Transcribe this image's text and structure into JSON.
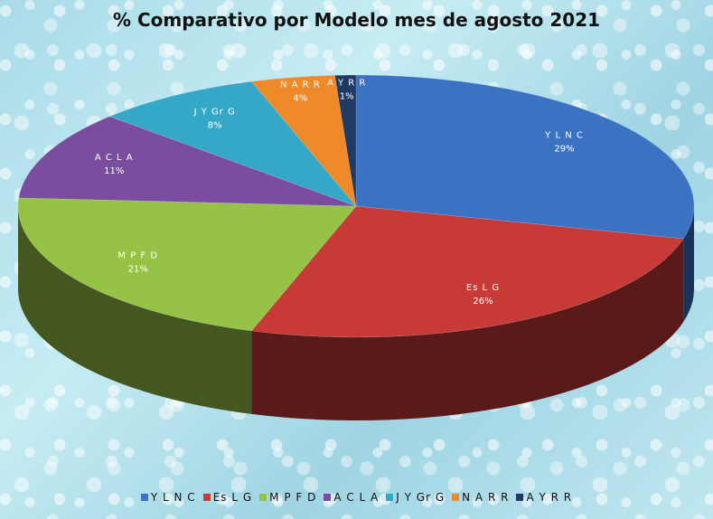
{
  "chart_data": {
    "type": "pie",
    "title": "% Comparativo  por  Modelo  mes de agosto 2021",
    "slices": [
      {
        "name": "Y L N C",
        "value": 29,
        "label": "29%",
        "color": "#3b72c2"
      },
      {
        "name": "Es L G",
        "value": 26,
        "label": "26%",
        "color": "#c83a38"
      },
      {
        "name": "M P F D",
        "value": 21,
        "label": "21%",
        "color": "#96c246"
      },
      {
        "name": "A C L A",
        "value": 11,
        "label": "11%",
        "color": "#7a4d9e"
      },
      {
        "name": "J Y Gr G",
        "value": 8,
        "label": "8%",
        "color": "#34a8c6"
      },
      {
        "name": "N A R R",
        "value": 4,
        "label": "4%",
        "color": "#ee8a2a"
      },
      {
        "name": "A Y R R",
        "value": 1,
        "label": "1%",
        "color": "#1f3a63"
      }
    ],
    "legend_position": "bottom"
  }
}
